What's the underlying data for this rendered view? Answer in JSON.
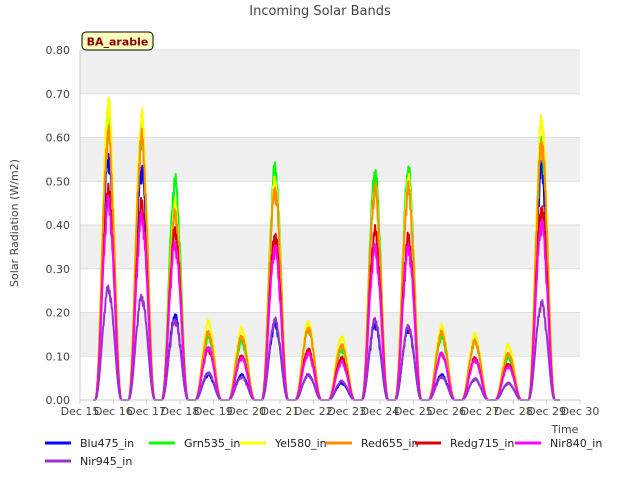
{
  "chart_data": {
    "type": "line",
    "title": "Incoming Solar Bands",
    "xlabel": "Time",
    "ylabel": "Solar Radiation (W/m2)",
    "site_label": "BA_arable",
    "ylim": [
      0,
      0.8
    ],
    "xlim": [
      15,
      30
    ],
    "yticks": [
      0.0,
      0.1,
      0.2,
      0.3,
      0.4,
      0.5,
      0.6,
      0.7,
      0.8
    ],
    "ytick_labels": [
      "0.00",
      "0.10",
      "0.20",
      "0.30",
      "0.40",
      "0.50",
      "0.60",
      "0.70",
      "0.80"
    ],
    "xticks": [
      15,
      16,
      17,
      18,
      19,
      20,
      21,
      22,
      23,
      24,
      25,
      26,
      27,
      28,
      29,
      30
    ],
    "xtick_labels": [
      "Dec 15",
      "Dec 16",
      "Dec 17",
      "Dec 18",
      "Dec 19",
      "Dec 20",
      "Dec 21",
      "Dec 22",
      "Dec 23",
      "Dec 24",
      "Dec 25",
      "Dec 26",
      "Dec 27",
      "Dec 28",
      "Dec 29",
      "Dec 30"
    ],
    "x_start": 15.4,
    "x_end": 29.4,
    "day_centers": [
      15.85,
      16.85,
      17.85,
      18.85,
      19.85,
      20.85,
      21.85,
      22.85,
      23.85,
      24.85,
      25.85,
      26.85,
      27.85,
      28.85
    ],
    "series": [
      {
        "name": "Blu475_in",
        "color": "#0000ff",
        "daily_peaks": [
          0.58,
          0.55,
          0.2,
          0.06,
          0.06,
          0.18,
          0.06,
          0.04,
          0.18,
          0.17,
          0.06,
          0.05,
          0.04,
          0.55
        ]
      },
      {
        "name": "Grn535_in",
        "color": "#00ff00",
        "daily_peaks": [
          0.66,
          0.64,
          0.52,
          0.15,
          0.14,
          0.55,
          0.17,
          0.12,
          0.54,
          0.545,
          0.15,
          0.14,
          0.1,
          0.61
        ]
      },
      {
        "name": "Yel580_in",
        "color": "#ffff00",
        "daily_peaks": [
          0.705,
          0.67,
          0.46,
          0.185,
          0.17,
          0.52,
          0.185,
          0.15,
          0.5,
          0.52,
          0.175,
          0.155,
          0.13,
          0.665
        ]
      },
      {
        "name": "Red655_in",
        "color": "#ff8c00",
        "daily_peaks": [
          0.63,
          0.62,
          0.44,
          0.16,
          0.15,
          0.5,
          0.17,
          0.13,
          0.5,
          0.5,
          0.16,
          0.14,
          0.11,
          0.61
        ]
      },
      {
        "name": "Redg715_in",
        "color": "#dd0000",
        "daily_peaks": [
          0.495,
          0.465,
          0.4,
          0.12,
          0.105,
          0.39,
          0.12,
          0.1,
          0.4,
          0.385,
          0.11,
          0.1,
          0.085,
          0.455
        ]
      },
      {
        "name": "Nir840_in",
        "color": "#ff00ff",
        "daily_peaks": [
          0.47,
          0.435,
          0.37,
          0.125,
          0.1,
          0.36,
          0.11,
          0.09,
          0.36,
          0.36,
          0.11,
          0.095,
          0.08,
          0.42
        ]
      },
      {
        "name": "Nir945_in",
        "color": "#9932cc",
        "daily_peaks": [
          0.265,
          0.245,
          0.19,
          0.065,
          0.055,
          0.19,
          0.06,
          0.045,
          0.19,
          0.175,
          0.055,
          0.05,
          0.04,
          0.23
        ]
      }
    ]
  }
}
